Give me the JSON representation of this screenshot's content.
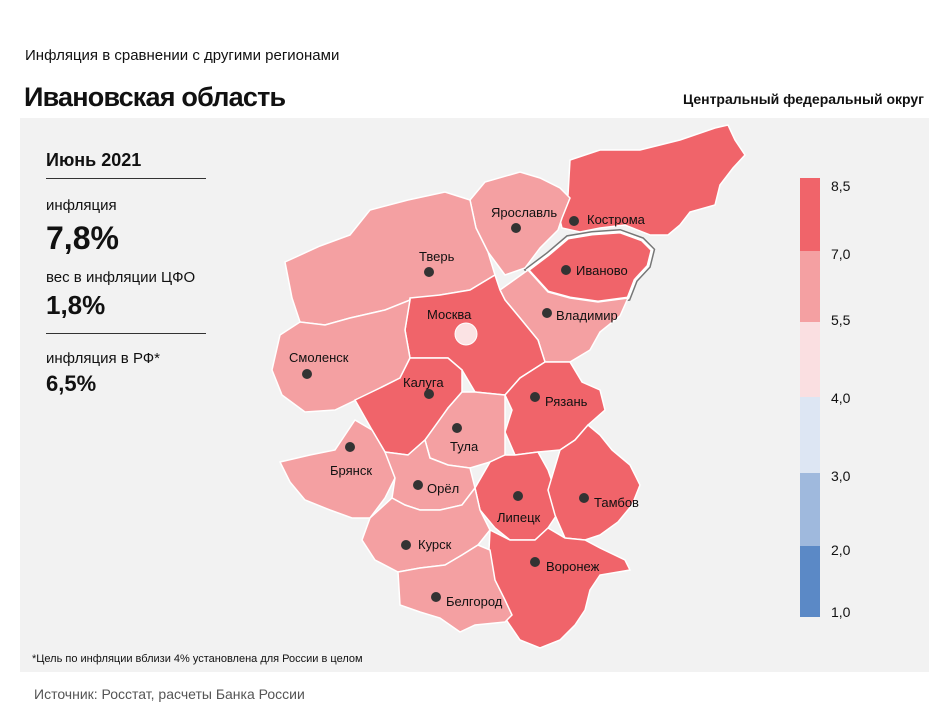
{
  "header": {
    "subtitle": "Инфляция в сравнении с другими регионами",
    "title": "Ивановская область",
    "district": "Центральный федеральный округ"
  },
  "stats": {
    "period": "Июнь 2021",
    "inflation_label": "инфляция",
    "inflation_value": "7,8%",
    "weight_label": "вес в инфляции ЦФО",
    "weight_value": "1,8%",
    "rf_label": "инфляция в РФ*",
    "rf_value": "6,5%"
  },
  "legend": {
    "ticks": [
      "8,5",
      "7,0",
      "5,5",
      "4,0",
      "3,0",
      "2,0",
      "1,0"
    ],
    "bins": [
      {
        "range": "7,0–8,5",
        "color": "#f0646a"
      },
      {
        "range": "5,5–7,0",
        "color": "#f4a0a2"
      },
      {
        "range": "4,0–5,5",
        "color": "#fadfe1"
      },
      {
        "range": "3,0–4,0",
        "color": "#dde6f3"
      },
      {
        "range": "2,0–3,0",
        "color": "#9fb9dd"
      },
      {
        "range": "1,0–2,0",
        "color": "#5b89c6"
      }
    ]
  },
  "regions": [
    {
      "name": "Кострома",
      "bin": "7,0–8,5"
    },
    {
      "name": "Иваново",
      "bin": "7,0–8,5",
      "highlighted": true
    },
    {
      "name": "Ярославль",
      "bin": "5,5–7,0"
    },
    {
      "name": "Тверь",
      "bin": "5,5–7,0"
    },
    {
      "name": "Владимир",
      "bin": "5,5–7,0"
    },
    {
      "name": "Москва",
      "bin": "7,0–8,5",
      "capital": true
    },
    {
      "name": "Смоленск",
      "bin": "5,5–7,0"
    },
    {
      "name": "Калуга",
      "bin": "7,0–8,5"
    },
    {
      "name": "Рязань",
      "bin": "7,0–8,5"
    },
    {
      "name": "Тула",
      "bin": "5,5–7,0"
    },
    {
      "name": "Брянск",
      "bin": "5,5–7,0"
    },
    {
      "name": "Орёл",
      "bin": "5,5–7,0"
    },
    {
      "name": "Липецк",
      "bin": "7,0–8,5"
    },
    {
      "name": "Тамбов",
      "bin": "7,0–8,5"
    },
    {
      "name": "Курск",
      "bin": "5,5–7,0"
    },
    {
      "name": "Воронеж",
      "bin": "7,0–8,5"
    },
    {
      "name": "Белгород",
      "bin": "5,5–7,0"
    }
  ],
  "footnote": "*Цель по инфляции вблизи 4% установлена для России в целом",
  "source": "Источник: Росстат, расчеты Банка России"
}
